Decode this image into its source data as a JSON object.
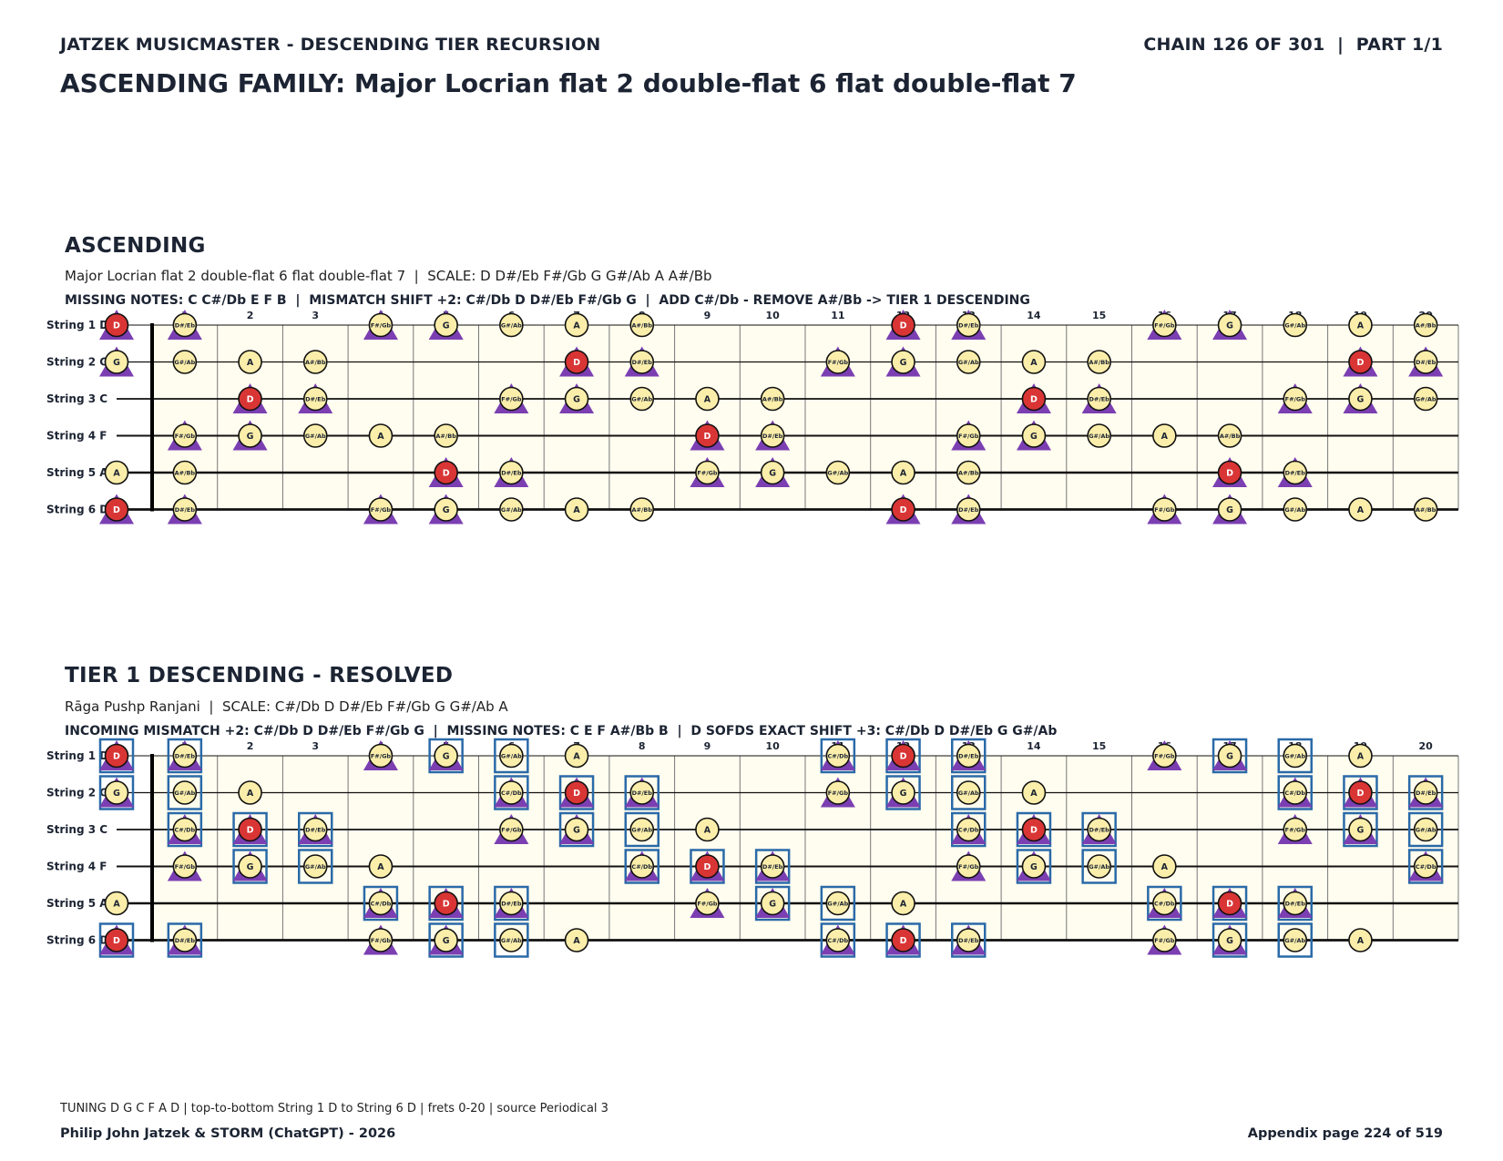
{
  "header": {
    "left": "JATZEK MUSICMASTER - DESCENDING TIER RECURSION",
    "right": "CHAIN 126 OF 301  |  PART 1/1",
    "title": "ASCENDING FAMILY: Major Locrian flat 2 double-flat 6 flat double-flat 7"
  },
  "colors": {
    "fretboard_bg": "#fffdf0",
    "note_fill": "#fbeeaa",
    "root_fill": "#d93535",
    "triangle": "#7b3fb2",
    "box": "#2a6aa8",
    "text": "#1c2433"
  },
  "fretboard": {
    "frets": 20,
    "fret_labels": [
      "1",
      "2",
      "3",
      "4",
      "5",
      "6",
      "7",
      "8",
      "9",
      "10",
      "11",
      "12",
      "13",
      "14",
      "15",
      "16",
      "17",
      "18",
      "19",
      "20"
    ],
    "string_labels": [
      "String 1 D",
      "String 2 G",
      "String 3 C",
      "String 4 F",
      "String 5 A",
      "String 6 D"
    ]
  },
  "sections": [
    {
      "title": "ASCENDING",
      "subtitle": "Major Locrian flat 2 double-flat 6 flat double-flat 7  |  SCALE: D D#/Eb F#/Gb G G#/Ab A A#/Bb",
      "info": "MISSING NOTES: C C#/Db E F B  |  MISMATCH SHIFT +2: C#/Db D D#/Eb F#/Gb G  |  ADD C#/Db - REMOVE A#/Bb -> TIER 1 DESCENDING",
      "scale_notes": [
        "D",
        "D#/Eb",
        "F#/Gb",
        "G",
        "G#/Ab",
        "A",
        "A#/Bb"
      ],
      "triangle_notes": [
        "C#/Db",
        "D",
        "D#/Eb",
        "F#/Gb",
        "G"
      ],
      "boxed_notes": []
    },
    {
      "title": "TIER 1 DESCENDING - RESOLVED",
      "subtitle": "Rāga Pushp Ranjani  |  SCALE: C#/Db D D#/Eb F#/Gb G G#/Ab A",
      "info": "INCOMING MISMATCH +2: C#/Db D D#/Eb F#/Gb G  |  MISSING NOTES: C E F A#/Bb B  |  D SOFDS EXACT SHIFT +3: C#/Db D D#/Eb G G#/Ab",
      "scale_notes": [
        "C#/Db",
        "D",
        "D#/Eb",
        "F#/Gb",
        "G",
        "G#/Ab",
        "A"
      ],
      "triangle_notes": [
        "C#/Db",
        "D",
        "D#/Eb",
        "F#/Gb",
        "G"
      ],
      "boxed_notes": [
        "C#/Db",
        "D",
        "D#/Eb",
        "G",
        "G#/Ab"
      ]
    }
  ],
  "root": "D",
  "tuning_open_notes": [
    "D",
    "G",
    "C",
    "F",
    "A",
    "D"
  ],
  "footer": {
    "note": "TUNING D G C F A D | top-to-bottom String 1 D to String 6 D | frets 0-20 | source Periodical 3",
    "left": "Philip John Jatzek & STORM (ChatGPT) - 2026",
    "right": "Appendix page 224 of 519"
  }
}
